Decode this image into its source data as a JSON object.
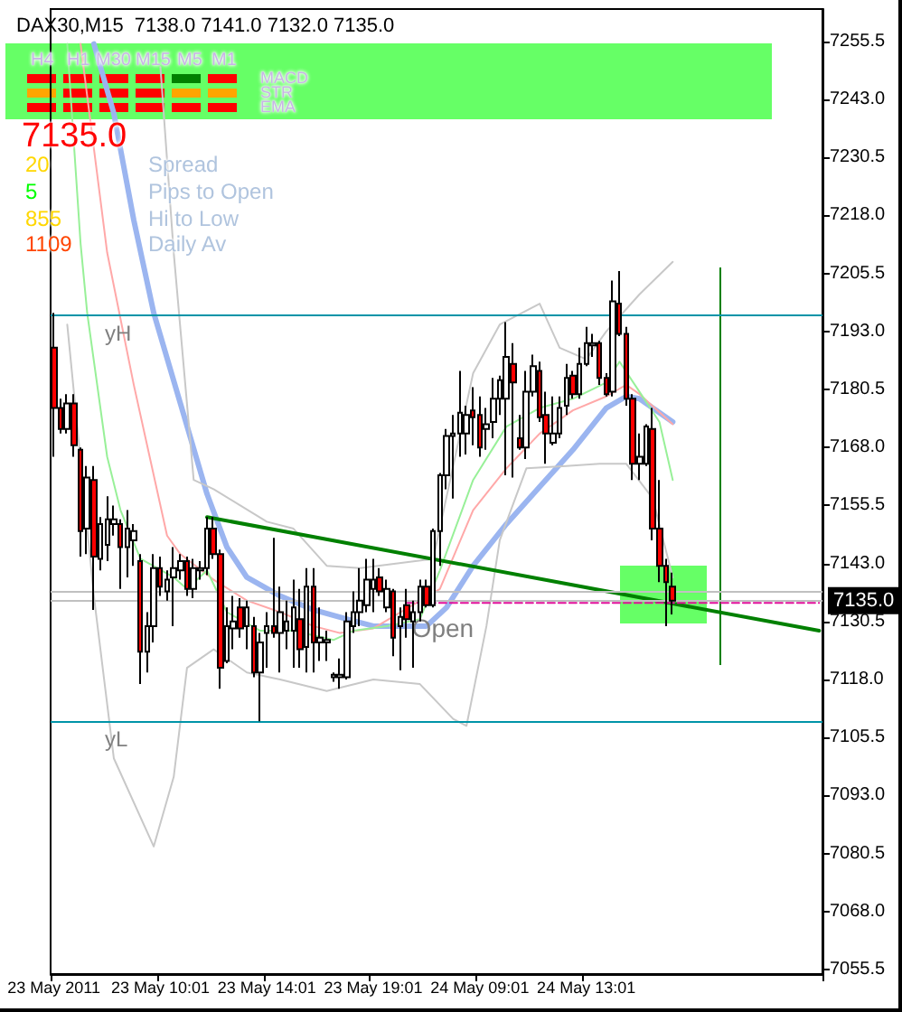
{
  "chart_data": {
    "type": "candlestick",
    "title": "DAX30,M15  7138.0 7141.0 7132.0 7135.0",
    "categories": [
      "23 May 2011",
      null,
      null,
      null,
      null,
      null,
      null,
      null,
      null,
      null,
      null,
      null,
      null,
      null,
      null,
      null,
      "23 May 10:01",
      null,
      null,
      null,
      null,
      null,
      null,
      null,
      null,
      null,
      null,
      null,
      null,
      null,
      null,
      null,
      "23 May 14:01",
      null,
      null,
      null,
      null,
      null,
      null,
      null,
      null,
      null,
      null,
      null,
      null,
      null,
      null,
      null,
      "23 May 19:01",
      null,
      null,
      null,
      null,
      null,
      null,
      null,
      null,
      null,
      null,
      null,
      null,
      null,
      null,
      null,
      "24 May 09:01",
      null,
      null,
      null,
      null,
      null,
      null,
      null,
      null,
      null,
      null,
      null,
      null,
      null,
      null,
      null,
      "24 May 13:01",
      null,
      null,
      null,
      null,
      null,
      null,
      null,
      null,
      null,
      null,
      null,
      null,
      null,
      null,
      null,
      null,
      null,
      null,
      null,
      null,
      null,
      null,
      null,
      null,
      null,
      null,
      null,
      null,
      null,
      null,
      null,
      null,
      null,
      null,
      null
    ],
    "ohlc": [
      [
        7189.5,
        7197,
        7166,
        7176.5
      ],
      [
        7176.5,
        7178.5,
        7171,
        7172
      ],
      [
        7172,
        7179.5,
        7171,
        7177.5
      ],
      [
        7177.5,
        7179.5,
        7166,
        7168.5
      ],
      [
        7167.5,
        7168,
        7144.5,
        7150
      ],
      [
        7150.5,
        7164,
        7145,
        7161.5
      ],
      [
        7161,
        7164,
        7133,
        7144.5
      ],
      [
        7144,
        7153,
        7141.5,
        7151.5
      ],
      [
        7147,
        7157.5,
        7143.5,
        7152.5
      ],
      [
        7151.5,
        7155.5,
        7149,
        7152.5
      ],
      [
        7151.5,
        7152.5,
        7137.5,
        7146.5
      ],
      [
        7146.5,
        7154.5,
        7140,
        7150.5
      ],
      [
        7148,
        7151.5,
        7142.5,
        7150
      ],
      [
        7143.5,
        7145,
        7117,
        7124
      ],
      [
        7124,
        7132.5,
        7119.5,
        7129.5
      ],
      [
        7129.5,
        7145,
        7126,
        7142
      ],
      [
        7142,
        7144.5,
        7136,
        7138
      ],
      [
        7137,
        7141.5,
        7135,
        7139.5
      ],
      [
        7140,
        7146.5,
        7129.5,
        7142
      ],
      [
        7141.5,
        7145,
        7139.5,
        7143.5
      ],
      [
        7143.5,
        7144.5,
        7136,
        7137.5
      ],
      [
        7137.5,
        7144,
        7135.5,
        7142
      ],
      [
        7141.5,
        7143.5,
        7139.5,
        7142
      ],
      [
        7142,
        7153,
        7140.5,
        7150.5
      ],
      [
        7150.5,
        7153,
        7144,
        7145
      ],
      [
        7145,
        7146,
        7116,
        7120.5
      ],
      [
        7122,
        7133.5,
        7121.5,
        7129.5
      ],
      [
        7129,
        7136,
        7124.5,
        7130.5
      ],
      [
        7133.5,
        7135.5,
        7127,
        7129
      ],
      [
        7129.5,
        7135,
        7124.5,
        7133.5
      ],
      [
        7129.5,
        7131.5,
        7118.5,
        7119.5
      ],
      [
        7119.5,
        7128,
        7109,
        7126
      ],
      [
        7128,
        7132.5,
        7120.5,
        7129.5
      ],
      [
        7129.5,
        7148.5,
        7127,
        7128
      ],
      [
        7128,
        7138,
        7119.5,
        7132.5
      ],
      [
        7128.5,
        7135,
        7124.5,
        7130.5
      ],
      [
        7128.5,
        7139.5,
        7120.5,
        7133.5
      ],
      [
        7131,
        7137.5,
        7120.5,
        7124.5
      ],
      [
        7125,
        7142,
        7119.5,
        7138
      ],
      [
        7138,
        7142,
        7119.5,
        7126
      ],
      [
        7126,
        7133.5,
        7122,
        7127
      ],
      [
        7126,
        7128.5,
        7122,
        7126.5
      ],
      [
        7118.5,
        7119.5,
        7117.5,
        7119
      ],
      [
        7118.5,
        7122.5,
        7116,
        7119
      ],
      [
        7118.5,
        7132.5,
        7118,
        7130.5
      ],
      [
        7129.5,
        7137,
        7128,
        7132.5
      ],
      [
        7132.5,
        7142,
        7129.5,
        7135
      ],
      [
        7134,
        7144,
        7132.5,
        7139.5
      ],
      [
        7137.5,
        7144,
        7132.5,
        7139.5
      ],
      [
        7140,
        7142,
        7136,
        7137
      ],
      [
        7133.5,
        7139.5,
        7132.5,
        7137.5
      ],
      [
        7137,
        7137.5,
        7123,
        7127
      ],
      [
        7129.5,
        7133.5,
        7120,
        7131.5
      ],
      [
        7134,
        7137.5,
        7127,
        7131
      ],
      [
        7130.5,
        7135,
        7120.5,
        7132.5
      ],
      [
        7132.5,
        7139.5,
        7130.5,
        7138
      ],
      [
        7138,
        7139.5,
        7133.5,
        7134
      ],
      [
        7134,
        7150.5,
        7133.5,
        7150
      ],
      [
        7150,
        7162.5,
        7142.5,
        7162
      ],
      [
        7162,
        7172,
        7159,
        7170.5
      ],
      [
        7170.5,
        7175,
        7157,
        7171
      ],
      [
        7171,
        7184.5,
        7166,
        7175.5
      ],
      [
        7171,
        7177,
        7166.5,
        7175
      ],
      [
        7176,
        7181,
        7168.5,
        7174.5
      ],
      [
        7175,
        7179,
        7166,
        7168
      ],
      [
        7172,
        7176.5,
        7167.5,
        7173
      ],
      [
        7173.5,
        7183,
        7170,
        7178.5
      ],
      [
        7178.5,
        7183.5,
        7175,
        7182.5
      ],
      [
        7178.5,
        7195,
        7162,
        7187.5
      ],
      [
        7186,
        7190.5,
        7161.5,
        7182
      ],
      [
        7170,
        7175,
        7167.5,
        7168
      ],
      [
        7168,
        7184.5,
        7165.5,
        7180
      ],
      [
        7180,
        7188,
        7179,
        7185.5
      ],
      [
        7184.5,
        7186.5,
        7173.5,
        7174.5
      ],
      [
        7175,
        7180,
        7164.5,
        7171
      ],
      [
        7169,
        7179,
        7168.5,
        7171
      ],
      [
        7171,
        7179,
        7170,
        7176.5
      ],
      [
        7177,
        7186,
        7175,
        7183
      ],
      [
        7183.5,
        7184.5,
        7178.5,
        7179.5
      ],
      [
        7179.5,
        7189.5,
        7178.5,
        7186
      ],
      [
        7186,
        7194,
        7185.5,
        7190.5
      ],
      [
        7190,
        7192.5,
        7187.5,
        7190.5
      ],
      [
        7190.5,
        7191,
        7181.5,
        7183
      ],
      [
        7183,
        7184,
        7179,
        7179.5
      ],
      [
        7180,
        7204,
        7179,
        7199.5
      ],
      [
        7199,
        7206,
        7192,
        7192.5
      ],
      [
        7192.5,
        7194,
        7177,
        7178.5
      ],
      [
        7178.5,
        7179.5,
        7161,
        7164.5
      ],
      [
        7164.5,
        7171,
        7161,
        7166
      ],
      [
        7164.5,
        7173,
        7164,
        7172.5
      ],
      [
        7172,
        7176.5,
        7148,
        7150.5
      ],
      [
        7150.5,
        7161,
        7139,
        7142.5
      ],
      [
        7142.5,
        7144,
        7129.5,
        7139
      ],
      [
        7138,
        7141,
        7132,
        7135
      ],
      null,
      null,
      null,
      null,
      null,
      null,
      null,
      null,
      null,
      null,
      null,
      null,
      null,
      null,
      null,
      null,
      null,
      null,
      null,
      null,
      null,
      null
    ],
    "series": [
      {
        "type": "line",
        "color": "#9bb5f0",
        "values": [
          null,
          null,
          null,
          null,
          null,
          null,
          7255,
          null,
          null,
          7240,
          null,
          null,
          7217,
          null,
          null,
          7197,
          null,
          null,
          null,
          7177.5,
          null,
          null,
          null,
          7158,
          null,
          null,
          7146.5,
          null,
          null,
          7140,
          null,
          null,
          null,
          null,
          7136,
          null,
          null,
          null,
          null,
          7133,
          null,
          null,
          null,
          null,
          7131,
          null,
          null,
          null,
          7129.5,
          null,
          null,
          7129.5,
          null,
          null,
          null,
          null,
          7129.5,
          null,
          null,
          7133.5,
          null,
          null,
          null,
          7142.5,
          null,
          null,
          null,
          null,
          7151.5,
          null,
          null,
          null,
          null,
          7159.5,
          null,
          null,
          null,
          null,
          7167.5,
          null,
          null,
          null,
          null,
          7176.5,
          null,
          null,
          7179,
          null,
          7178.5,
          null,
          null,
          null,
          null,
          7173.5,
          null,
          null,
          null,
          null,
          null,
          null,
          null,
          null,
          null,
          null,
          null,
          null,
          null,
          null,
          null,
          null,
          null,
          null,
          null,
          null,
          null,
          null
        ]
      },
      {
        "type": "line",
        "color": "#ffa8a8",
        "values": [
          null,
          null,
          null,
          null,
          7255,
          null,
          null,
          null,
          7210,
          null,
          null,
          null,
          7181.5,
          null,
          null,
          null,
          null,
          7149,
          null,
          7145,
          null,
          null,
          null,
          null,
          7139.5,
          null,
          null,
          null,
          null,
          7135,
          null,
          null,
          null,
          null,
          7132.5,
          null,
          null,
          null,
          null,
          7129.5,
          null,
          null,
          null,
          7128,
          null,
          null,
          null,
          null,
          7129,
          null,
          null,
          null,
          null,
          null,
          null,
          null,
          null,
          null,
          7137.5,
          null,
          null,
          null,
          null,
          7154.5,
          null,
          null,
          null,
          null,
          7163.5,
          null,
          null,
          null,
          null,
          7171,
          null,
          null,
          null,
          null,
          7176,
          null,
          null,
          null,
          null,
          7179,
          null,
          null,
          7181.5,
          null,
          7179.5,
          null,
          null,
          null,
          null,
          7173,
          null,
          null,
          null,
          null,
          null,
          null,
          null,
          null,
          null,
          null,
          null,
          null,
          null,
          null,
          null,
          null,
          null,
          null,
          null,
          null,
          null,
          null
        ]
      },
      {
        "type": "line",
        "color": "#98f098",
        "values": [
          null,
          null,
          7255,
          null,
          7212,
          7197,
          null,
          null,
          7166,
          null,
          7154.5,
          null,
          null,
          7144,
          null,
          null,
          null,
          null,
          7140,
          null,
          7137.5,
          null,
          null,
          7141.5,
          null,
          null,
          7132.5,
          null,
          null,
          null,
          null,
          7128.5,
          null,
          null,
          null,
          null,
          7128.5,
          null,
          null,
          null,
          null,
          null,
          7126.5,
          null,
          null,
          7128.5,
          null,
          null,
          null,
          null,
          7129.5,
          null,
          null,
          null,
          null,
          7131,
          null,
          null,
          7141.5,
          null,
          null,
          null,
          null,
          7161,
          null,
          null,
          null,
          null,
          7172.5,
          null,
          null,
          null,
          null,
          7176.5,
          null,
          null,
          null,
          null,
          7178.5,
          null,
          null,
          null,
          null,
          7182,
          null,
          7186.5,
          null,
          null,
          7180,
          null,
          null,
          7173.5,
          null,
          7161,
          null,
          null,
          null,
          null,
          null,
          null,
          null,
          null,
          null,
          null,
          null,
          null,
          null,
          null,
          null,
          null,
          null,
          null,
          null,
          null,
          null,
          null
        ]
      },
      {
        "type": "line",
        "color": "#c8c8c8",
        "values": [
          null,
          null,
          null,
          null,
          null,
          null,
          null,
          null,
          null,
          null,
          null,
          null,
          null,
          null,
          null,
          null,
          7250,
          null,
          7210,
          null,
          null,
          7161,
          null,
          null,
          7159,
          null,
          null,
          null,
          7155.5,
          null,
          null,
          null,
          7152,
          null,
          null,
          null,
          7150.5,
          null,
          null,
          null,
          null,
          7142.5,
          null,
          null,
          null,
          null,
          7142,
          null,
          null,
          null,
          null,
          null,
          null,
          null,
          null,
          null,
          null,
          7144,
          null,
          null,
          null,
          null,
          null,
          7184,
          null,
          null,
          null,
          7194.5,
          null,
          null,
          null,
          null,
          null,
          7199,
          null,
          null,
          7189.5,
          null,
          null,
          null,
          7187,
          null,
          null,
          7193,
          null,
          null,
          null,
          null,
          7201,
          null,
          null,
          null,
          null,
          7208,
          null,
          null,
          null,
          null,
          null,
          null,
          null,
          null,
          null,
          null,
          null,
          null,
          null,
          null,
          null,
          null,
          null,
          null,
          null,
          null,
          null,
          null
        ]
      },
      {
        "type": "line",
        "color": "#c8c8c8",
        "values": [
          null,
          null,
          7194.5,
          null,
          null,
          null,
          7136,
          null,
          null,
          7101,
          null,
          null,
          null,
          null,
          null,
          7082,
          null,
          null,
          7097,
          null,
          7120.5,
          null,
          null,
          null,
          7124.5,
          null,
          null,
          null,
          null,
          7119.5,
          null,
          null,
          null,
          null,
          7118,
          null,
          null,
          null,
          null,
          null,
          null,
          7115.5,
          null,
          null,
          null,
          null,
          null,
          null,
          7118,
          null,
          null,
          null,
          null,
          null,
          null,
          7117,
          null,
          null,
          null,
          null,
          7109.5,
          null,
          7108,
          null,
          null,
          7129.5,
          null,
          7148,
          null,
          null,
          null,
          7163.5,
          null,
          null,
          null,
          null,
          null,
          7164,
          null,
          null,
          null,
          null,
          7164.5,
          null,
          null,
          null,
          7164.5,
          null,
          null,
          null,
          7157,
          null,
          null,
          7140,
          null,
          null,
          null,
          null,
          null,
          null,
          null,
          null,
          null,
          null,
          null,
          null,
          null,
          null,
          null,
          null,
          null,
          null,
          null,
          null,
          null,
          null
        ]
      },
      {
        "type": "line",
        "color": "#008000",
        "values": [
          null,
          null,
          null,
          null,
          null,
          null,
          null,
          null,
          null,
          null,
          null,
          null,
          null,
          null,
          null,
          null,
          null,
          null,
          null,
          null,
          null,
          null,
          null,
          7153,
          null,
          null,
          null,
          null,
          null,
          null,
          null,
          null,
          null,
          null,
          null,
          null,
          null,
          null,
          null,
          null,
          null,
          null,
          null,
          null,
          null,
          null,
          null,
          null,
          null,
          null,
          null,
          null,
          null,
          null,
          null,
          null,
          null,
          null,
          null,
          null,
          null,
          null,
          null,
          null,
          null,
          null,
          null,
          null,
          null,
          null,
          null,
          null,
          null,
          null,
          null,
          null,
          null,
          null,
          null,
          null,
          null,
          null,
          null,
          null,
          null,
          null,
          null,
          null,
          null,
          null,
          null,
          null,
          null,
          null,
          null,
          null,
          null,
          null,
          null,
          null,
          null,
          null,
          null,
          null,
          null,
          null,
          null,
          null,
          null,
          null,
          null,
          null,
          null,
          null,
          null,
          7128.5
        ]
      },
      {
        "type": "line",
        "name": "Open",
        "color": "#e0109a",
        "line_style": "dashed",
        "values": [
          null,
          null,
          null,
          null,
          null,
          null,
          null,
          null,
          null,
          null,
          null,
          null,
          null,
          null,
          null,
          null,
          null,
          null,
          null,
          null,
          null,
          null,
          null,
          null,
          null,
          null,
          null,
          null,
          null,
          null,
          null,
          null,
          null,
          null,
          null,
          null,
          null,
          null,
          null,
          null,
          null,
          null,
          null,
          null,
          null,
          null,
          null,
          null,
          null,
          null,
          null,
          null,
          null,
          7134.5,
          null,
          null,
          null,
          null,
          null,
          null,
          null,
          null,
          null,
          null,
          null,
          null,
          null,
          null,
          null,
          null,
          null,
          null,
          null,
          null,
          null,
          null,
          null,
          null,
          null,
          null,
          null,
          null,
          null,
          null,
          null,
          null,
          null,
          null,
          null,
          null,
          null,
          null,
          null,
          null,
          null,
          null,
          null,
          null,
          null,
          null,
          null,
          null,
          null,
          null,
          null,
          null,
          null,
          null,
          null,
          null,
          null,
          null,
          null,
          null,
          null,
          7134.5
        ]
      }
    ],
    "ylim": [
      7054.5,
      7262.5
    ],
    "yticks": [
      7055.5,
      {
        "value": 7068,
        "label": "7068.0"
      },
      7080.5,
      {
        "value": 7093,
        "label": "7093.0"
      },
      7105.5,
      {
        "value": 7118,
        "label": "7118.0"
      },
      7130.5,
      {
        "value": 7143,
        "label": "7143.0"
      },
      7155.5,
      {
        "value": 7168,
        "label": "7168.0"
      },
      7180.5,
      {
        "value": 7193,
        "label": "7193.0"
      },
      7205.5,
      {
        "value": 7218,
        "label": "7218.0"
      },
      7230.5,
      {
        "value": 7243,
        "label": "7243.0"
      },
      7255.5
    ],
    "ref_lines": [
      {
        "axis": "y",
        "value": 7196.5,
        "label": "yH",
        "color": "#0094a8"
      },
      {
        "axis": "y",
        "value": 7109,
        "label": "yL",
        "color": "#0094a8"
      },
      {
        "axis": "y",
        "value": 7135,
        "label": "7135.0",
        "color": "#c0c0c0"
      },
      {
        "axis": "y",
        "value": 7137,
        "color": "#c0c0c0"
      }
    ],
    "annotations": [
      "7135.0",
      "20",
      "Spread",
      "5",
      "Pips to Open",
      "855",
      "Hi to Low",
      "1109",
      "Daily Av",
      "H4",
      "H1",
      "M30",
      "M15",
      "M5",
      "M1",
      "MACD",
      "STR",
      "EMA"
    ]
  }
}
